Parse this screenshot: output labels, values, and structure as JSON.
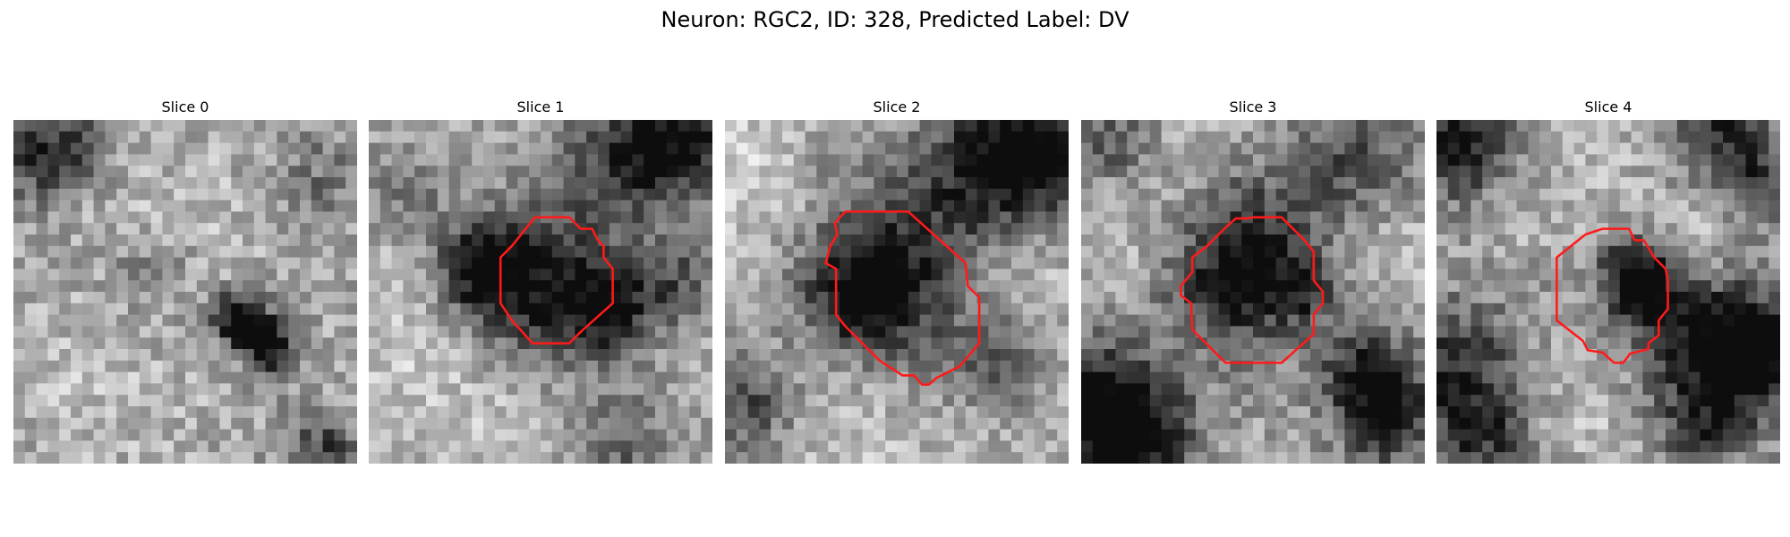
{
  "figure": {
    "title": "Neuron: RGC2, ID: 328, Predicted Label: DV"
  },
  "colors": {
    "contour": "#ff1a1a"
  },
  "panels": [
    {
      "title": "Slice 0",
      "has_contour": false
    },
    {
      "title": "Slice 1",
      "has_contour": true
    },
    {
      "title": "Slice 2",
      "has_contour": true
    },
    {
      "title": "Slice 3",
      "has_contour": true
    },
    {
      "title": "Slice 4",
      "has_contour": true
    }
  ]
}
